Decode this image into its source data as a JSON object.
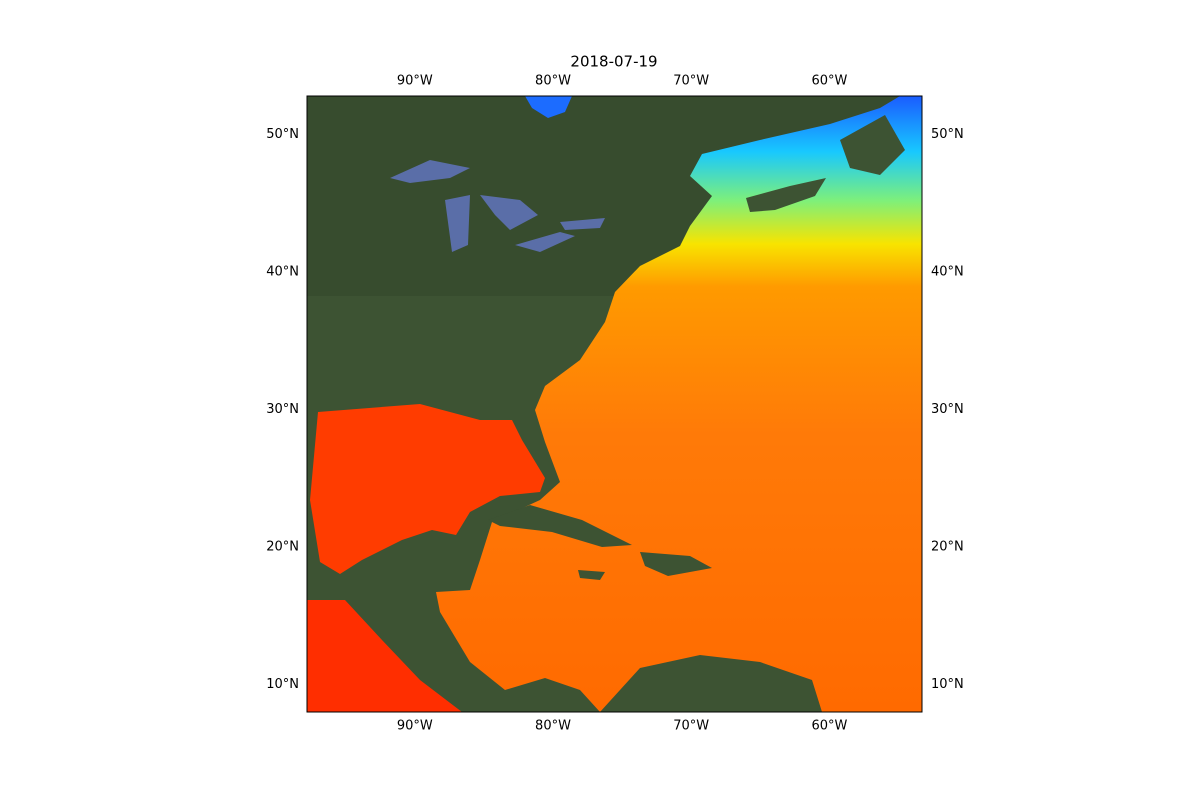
{
  "map": {
    "title": "2018-07-19",
    "xlim": [
      -97.8,
      -53.3
    ],
    "ylim": [
      8.0,
      52.8
    ],
    "xticks": [
      {
        "value": -90,
        "label": "90°W"
      },
      {
        "value": -80,
        "label": "80°W"
      },
      {
        "value": -70,
        "label": "70°W"
      },
      {
        "value": -60,
        "label": "60°W"
      }
    ],
    "yticks": [
      {
        "value": 10,
        "label": "10°N"
      },
      {
        "value": 20,
        "label": "20°N"
      },
      {
        "value": 30,
        "label": "30°N"
      },
      {
        "value": 40,
        "label": "40°N"
      },
      {
        "value": 50,
        "label": "50°N"
      }
    ]
  }
}
